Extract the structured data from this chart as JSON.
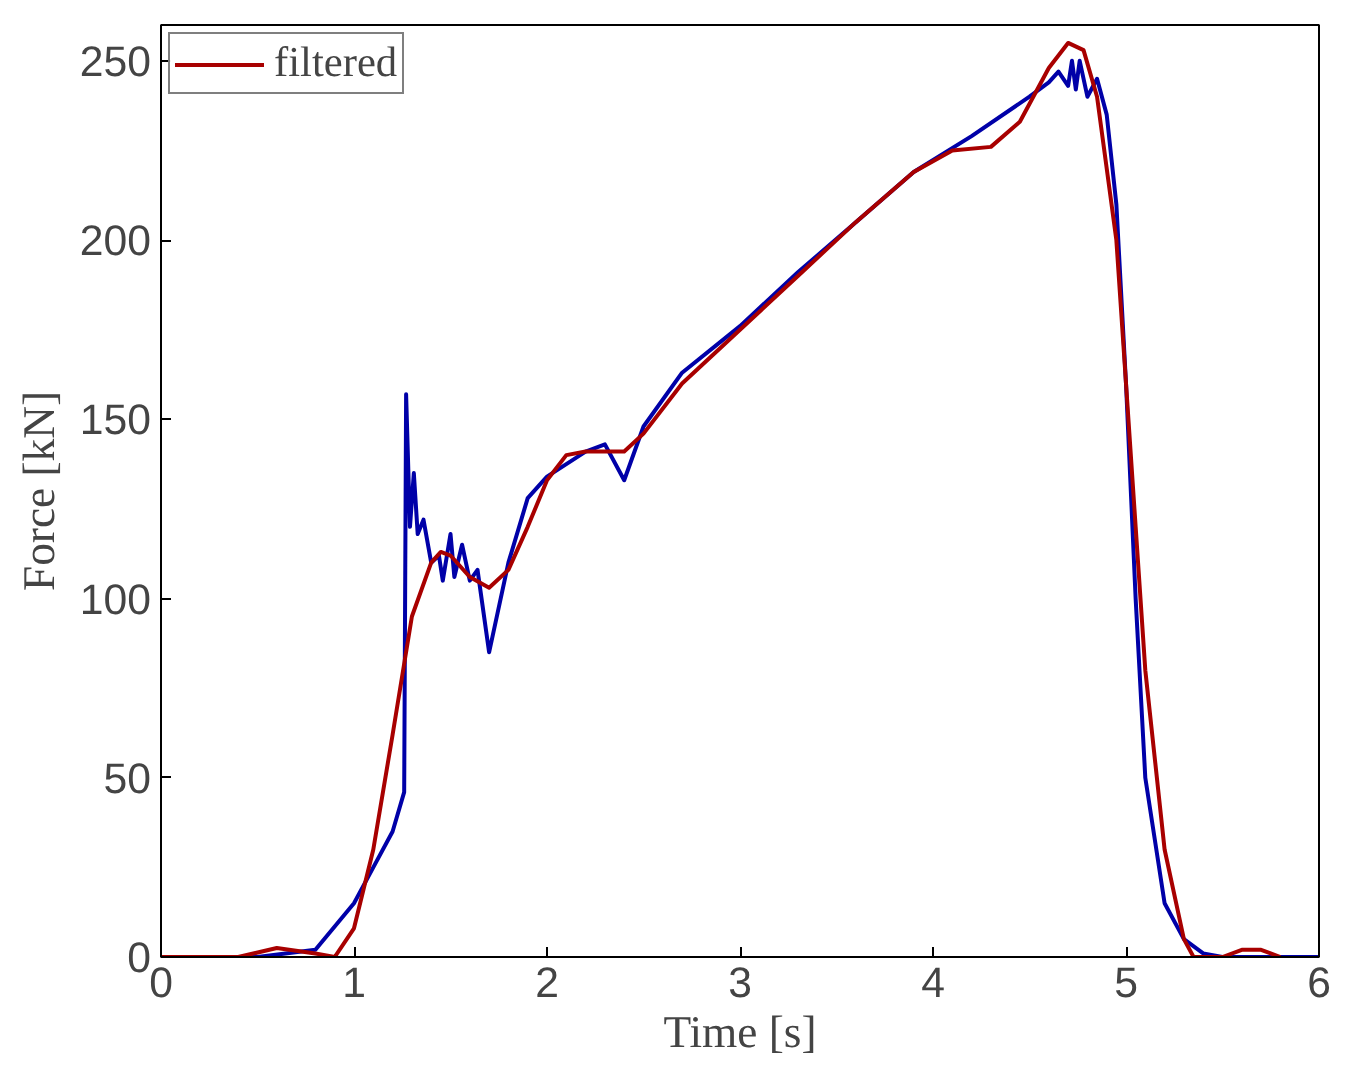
{
  "chart_data": {
    "type": "line",
    "xlabel": "Time [s]",
    "ylabel": "Force [kN]",
    "xlim": [
      0,
      6
    ],
    "ylim": [
      0,
      260
    ],
    "xticks": [
      0,
      1,
      2,
      3,
      4,
      5,
      6
    ],
    "yticks": [
      0,
      50,
      100,
      150,
      200,
      250
    ],
    "grid": false,
    "legend": "top left",
    "marker": "none",
    "line_style": "solid",
    "series": [
      {
        "color": "#0000a8",
        "x": [
          0,
          0.5,
          0.8,
          1.0,
          1.1,
          1.2,
          1.26,
          1.27,
          1.29,
          1.31,
          1.33,
          1.36,
          1.4,
          1.44,
          1.46,
          1.5,
          1.52,
          1.56,
          1.6,
          1.64,
          1.7,
          1.8,
          1.9,
          2.0,
          2.2,
          2.3,
          2.4,
          2.5,
          2.7,
          3.0,
          3.3,
          3.6,
          3.9,
          4.2,
          4.5,
          4.6,
          4.65,
          4.7,
          4.72,
          4.74,
          4.76,
          4.8,
          4.85,
          4.9,
          4.95,
          5.0,
          5.05,
          5.1,
          5.2,
          5.3,
          5.4,
          5.5,
          6.0
        ],
        "values": [
          0,
          0,
          2,
          15,
          25,
          35,
          46,
          157,
          120,
          135,
          118,
          122,
          110,
          112,
          105,
          118,
          106,
          115,
          105,
          108,
          85,
          110,
          128,
          134,
          141,
          143,
          133,
          148,
          163,
          176,
          191,
          205,
          219,
          229,
          240,
          244,
          247,
          243,
          250,
          242,
          250,
          240,
          245,
          235,
          210,
          160,
          100,
          50,
          15,
          5,
          1,
          0,
          0
        ]
      },
      {
        "name": "filtered",
        "color": "#a80000",
        "x": [
          0,
          0.4,
          0.6,
          0.8,
          0.9,
          1.0,
          1.1,
          1.2,
          1.3,
          1.4,
          1.45,
          1.5,
          1.6,
          1.7,
          1.8,
          1.9,
          2.0,
          2.1,
          2.2,
          2.4,
          2.5,
          2.7,
          3.0,
          3.3,
          3.6,
          3.9,
          4.1,
          4.3,
          4.45,
          4.6,
          4.7,
          4.78,
          4.85,
          4.95,
          5.0,
          5.05,
          5.1,
          5.2,
          5.3,
          5.35,
          5.5,
          5.6,
          5.7,
          5.8
        ],
        "values": [
          0,
          0,
          2.5,
          1,
          0,
          8,
          30,
          62,
          95,
          110,
          113,
          112,
          106,
          103,
          108,
          120,
          133,
          140,
          141,
          141,
          146,
          160,
          175,
          190,
          205,
          219,
          225,
          226,
          233,
          248,
          255,
          253,
          240,
          200,
          160,
          120,
          80,
          30,
          5,
          0,
          0,
          2,
          2,
          0
        ]
      }
    ]
  }
}
